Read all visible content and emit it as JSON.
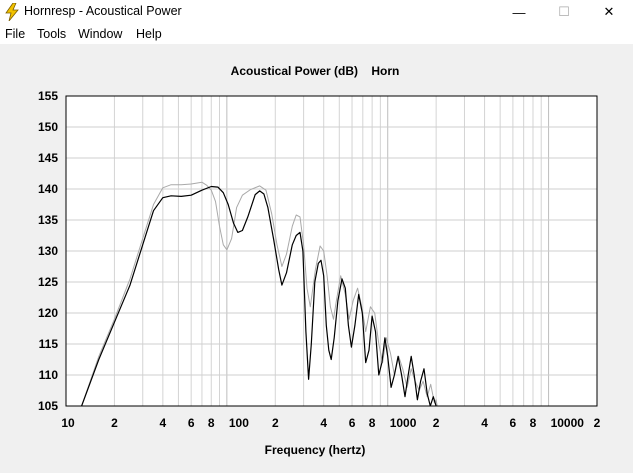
{
  "window": {
    "title": "Hornresp - Acoustical Power",
    "minimize_glyph": "—",
    "maximize_glyph": "☐",
    "close_glyph": "✕",
    "icon": "lightning-bolt-icon"
  },
  "menu": {
    "items": [
      "File",
      "Tools",
      "Window",
      "Help"
    ]
  },
  "chart_data": {
    "type": "line",
    "title": "Acoustical Power (dB)    Horn",
    "xlabel": "Frequency (hertz)",
    "ylabel": "",
    "x_scale": "log",
    "xlim": [
      10,
      20000
    ],
    "ylim": [
      105,
      155
    ],
    "y_ticks": [
      "155",
      "150",
      "145",
      "140",
      "135",
      "130",
      "125",
      "120",
      "115",
      "110",
      "105"
    ],
    "x_ticks": [
      {
        "f": 10,
        "label": "10"
      },
      {
        "f": 20,
        "label": "2"
      },
      {
        "f": 40,
        "label": "4"
      },
      {
        "f": 60,
        "label": "6"
      },
      {
        "f": 80,
        "label": "8"
      },
      {
        "f": 100,
        "label": "100"
      },
      {
        "f": 200,
        "label": "2"
      },
      {
        "f": 400,
        "label": "4"
      },
      {
        "f": 600,
        "label": "6"
      },
      {
        "f": 800,
        "label": "8"
      },
      {
        "f": 1000,
        "label": "1000"
      },
      {
        "f": 2000,
        "label": "2"
      },
      {
        "f": 4000,
        "label": "4"
      },
      {
        "f": 6000,
        "label": "6"
      },
      {
        "f": 8000,
        "label": "8"
      },
      {
        "f": 10000,
        "label": "10000"
      },
      {
        "f": 20000,
        "label": "2"
      }
    ],
    "grid": true,
    "colors": {
      "primary": "#000000",
      "reference": "#a9a9a9",
      "grid": "#d4d4d4"
    },
    "series": [
      {
        "style": "gray",
        "points": [
          [
            12.5,
            105
          ],
          [
            16,
            113
          ],
          [
            20,
            119
          ],
          [
            25,
            125.5
          ],
          [
            30,
            132
          ],
          [
            35,
            137.5
          ],
          [
            40,
            140.2
          ],
          [
            45,
            140.7
          ],
          [
            52,
            140.7
          ],
          [
            60,
            140.8
          ],
          [
            70,
            141.1
          ],
          [
            75,
            140.6
          ],
          [
            80,
            139.8
          ],
          [
            85,
            138
          ],
          [
            90,
            134
          ],
          [
            95,
            131
          ],
          [
            100,
            130.2
          ],
          [
            107,
            132
          ],
          [
            115,
            137
          ],
          [
            125,
            139
          ],
          [
            140,
            139.9
          ],
          [
            160,
            140.5
          ],
          [
            175,
            139.8
          ],
          [
            190,
            136
          ],
          [
            205,
            131
          ],
          [
            220,
            127.5
          ],
          [
            235,
            129.5
          ],
          [
            255,
            134
          ],
          [
            270,
            135.8
          ],
          [
            285,
            135.5
          ],
          [
            300,
            131
          ],
          [
            315,
            124
          ],
          [
            330,
            121
          ],
          [
            355,
            127
          ],
          [
            380,
            130.8
          ],
          [
            400,
            130
          ],
          [
            420,
            126
          ],
          [
            440,
            121
          ],
          [
            460,
            119
          ],
          [
            480,
            122
          ],
          [
            510,
            126
          ],
          [
            545,
            123
          ],
          [
            575,
            119
          ],
          [
            610,
            122
          ],
          [
            650,
            124
          ],
          [
            690,
            121
          ],
          [
            730,
            117
          ],
          [
            780,
            121
          ],
          [
            830,
            120
          ],
          [
            880,
            115
          ],
          [
            930,
            112
          ],
          [
            980,
            116
          ],
          [
            1040,
            113.5
          ],
          [
            1100,
            110
          ],
          [
            1170,
            113
          ],
          [
            1240,
            111
          ],
          [
            1320,
            108
          ],
          [
            1400,
            111
          ],
          [
            1480,
            109
          ],
          [
            1570,
            107.5
          ],
          [
            1660,
            109
          ],
          [
            1760,
            106.5
          ],
          [
            1850,
            108.5
          ],
          [
            1950,
            105.5
          ],
          [
            2000,
            106
          ],
          [
            2030,
            105
          ]
        ]
      },
      {
        "style": "black",
        "points": [
          [
            12.5,
            105
          ],
          [
            16,
            112.5
          ],
          [
            20,
            118.5
          ],
          [
            25,
            124.5
          ],
          [
            30,
            131
          ],
          [
            35,
            136.5
          ],
          [
            40,
            138.6
          ],
          [
            45,
            138.9
          ],
          [
            52,
            138.8
          ],
          [
            60,
            139
          ],
          [
            70,
            139.8
          ],
          [
            80,
            140.4
          ],
          [
            88,
            140.3
          ],
          [
            95,
            139.4
          ],
          [
            102,
            137.5
          ],
          [
            110,
            134.5
          ],
          [
            117,
            133
          ],
          [
            125,
            133.3
          ],
          [
            135,
            135.5
          ],
          [
            150,
            139.1
          ],
          [
            160,
            139.7
          ],
          [
            170,
            139.2
          ],
          [
            180,
            137
          ],
          [
            195,
            132
          ],
          [
            210,
            127
          ],
          [
            220,
            124.5
          ],
          [
            235,
            126.5
          ],
          [
            255,
            131
          ],
          [
            270,
            132.5
          ],
          [
            285,
            133
          ],
          [
            297,
            130
          ],
          [
            310,
            117
          ],
          [
            322,
            109.3
          ],
          [
            335,
            115
          ],
          [
            352,
            125
          ],
          [
            370,
            128
          ],
          [
            385,
            128.5
          ],
          [
            400,
            126
          ],
          [
            415,
            118
          ],
          [
            430,
            114
          ],
          [
            445,
            112.5
          ],
          [
            465,
            116
          ],
          [
            490,
            122
          ],
          [
            520,
            125.5
          ],
          [
            545,
            124
          ],
          [
            570,
            118
          ],
          [
            595,
            114.5
          ],
          [
            625,
            118
          ],
          [
            660,
            123
          ],
          [
            695,
            120
          ],
          [
            730,
            112
          ],
          [
            765,
            114
          ],
          [
            800,
            119.5
          ],
          [
            840,
            117
          ],
          [
            880,
            110
          ],
          [
            920,
            112
          ],
          [
            960,
            116
          ],
          [
            1000,
            113
          ],
          [
            1050,
            108
          ],
          [
            1100,
            110
          ],
          [
            1160,
            113
          ],
          [
            1220,
            110
          ],
          [
            1280,
            106.5
          ],
          [
            1340,
            110
          ],
          [
            1400,
            113
          ],
          [
            1460,
            110
          ],
          [
            1530,
            106
          ],
          [
            1600,
            109
          ],
          [
            1680,
            111
          ],
          [
            1760,
            107
          ],
          [
            1840,
            105
          ],
          [
            1920,
            106.5
          ],
          [
            2000,
            105
          ]
        ]
      }
    ]
  }
}
